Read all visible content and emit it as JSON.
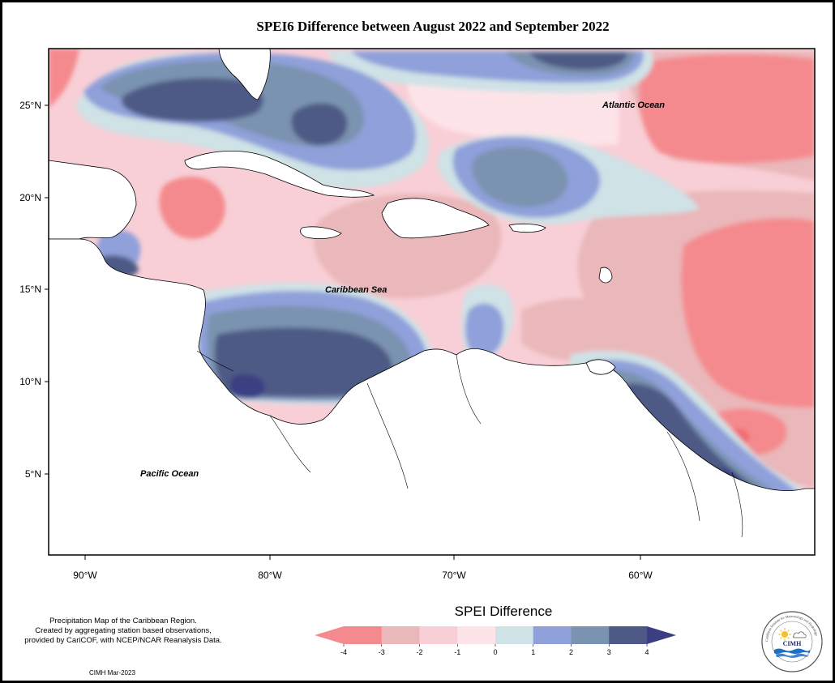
{
  "title": "SPEI6 Difference between August 2022 and September 2022",
  "map": {
    "ocean_labels": [
      {
        "name": "atlantic-ocean-label",
        "text": "Atlantic Ocean"
      },
      {
        "name": "caribbean-sea-label",
        "text": "Caribbean Sea"
      },
      {
        "name": "pacific-ocean-label",
        "text": "Pacific Ocean"
      }
    ],
    "lat_ticks": [
      "25°N",
      "20°N",
      "15°N",
      "10°N",
      "5°N"
    ],
    "lon_ticks": [
      "90°W",
      "80°W",
      "70°W",
      "60°W"
    ]
  },
  "legend": {
    "title": "SPEI Difference",
    "ticks": [
      "-4",
      "-3",
      "-2",
      "-1",
      "0",
      "1",
      "2",
      "3",
      "4"
    ],
    "colors": [
      "#f48a8d",
      "#eab7ba",
      "#f8cfd6",
      "#fde4e8",
      "#cfe2e6",
      "#8fa0da",
      "#7a93b0",
      "#4e5a85"
    ],
    "low_color": "#f48a8d",
    "high_color": "#3b3f82"
  },
  "credit": {
    "lines": [
      "Precipitation Map of the Caribbean Region.",
      "Created by aggregating station based observations,",
      "provided by CariCOF, with NCEP/NCAR Reanalysis Data."
    ],
    "date": "CIMH Mar-2023"
  },
  "logo": {
    "text": "CIMH",
    "ring_text": "Caribbean Institute for Meteorology and Hydrology",
    "icons": [
      "sun-icon",
      "cloud-icon",
      "water-waves-icon"
    ]
  }
}
